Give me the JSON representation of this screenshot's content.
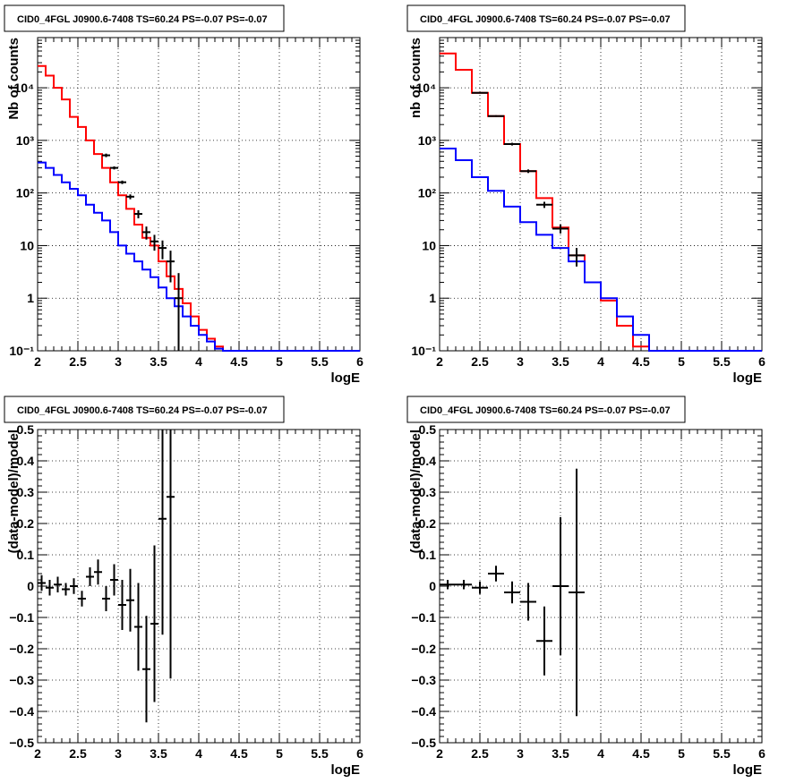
{
  "chart_data": [
    {
      "type": "line",
      "title": "CID0_4FGL J0900.6-7408 TS=60.24 PS=-0.07 PS=-0.07",
      "xlabel": "logE",
      "ylabel": "Nb of counts",
      "xlim": [
        2,
        6
      ],
      "ylim": [
        0.1,
        90000
      ],
      "yscale": "log",
      "grid": true,
      "xticks": [
        "2",
        "2.5",
        "3",
        "3.5",
        "4",
        "4.5",
        "5",
        "5.5",
        "6"
      ],
      "yticks": [
        {
          "v": 0.1,
          "label": "10⁻¹"
        },
        {
          "v": 1,
          "label": "1"
        },
        {
          "v": 10,
          "label": "10"
        },
        {
          "v": 100,
          "label": "10²"
        },
        {
          "v": 1000,
          "label": "10³"
        },
        {
          "v": 10000,
          "label": "10⁴"
        }
      ],
      "binwidth": 0.1,
      "series": [
        {
          "color": "#ff0000",
          "style": "step",
          "x": [
            2.0,
            2.1,
            2.2,
            2.3,
            2.4,
            2.5,
            2.6,
            2.7,
            2.8,
            2.9,
            3.0,
            3.1,
            3.2,
            3.3,
            3.4,
            3.5,
            3.6,
            3.7,
            3.8,
            3.9,
            4.0,
            4.1,
            4.2,
            4.3,
            4.4,
            4.5,
            4.6,
            4.7,
            4.8,
            4.9,
            5.0,
            5.1,
            5.2,
            5.3,
            5.4,
            5.5,
            5.6,
            5.7,
            5.8,
            5.9
          ],
          "values": [
            26000,
            17000,
            10000,
            6000,
            2800,
            1800,
            1000,
            550,
            300,
            160,
            90,
            50,
            25,
            14,
            10,
            5,
            2.6,
            1.5,
            0.8,
            0.45,
            0.25,
            0.17,
            0.12,
            0.1,
            0.1,
            0.1,
            0.1,
            0.1,
            0.1,
            0.1,
            0.1,
            0.1,
            0.1,
            0.1,
            0.1,
            0.1,
            0.1,
            0.1,
            0.1,
            0.1
          ]
        },
        {
          "color": "#0000ff",
          "style": "step",
          "x": [
            2.0,
            2.1,
            2.2,
            2.3,
            2.4,
            2.5,
            2.6,
            2.7,
            2.8,
            2.9,
            3.0,
            3.1,
            3.2,
            3.3,
            3.4,
            3.5,
            3.6,
            3.7,
            3.8,
            3.9,
            4.0,
            4.1,
            4.2,
            4.3,
            4.4,
            4.5,
            4.6,
            4.7,
            4.8,
            4.9,
            5.0,
            5.1,
            5.2,
            5.3,
            5.4,
            5.5,
            5.6,
            5.7,
            5.8,
            5.9
          ],
          "values": [
            380,
            300,
            220,
            160,
            120,
            90,
            60,
            42,
            30,
            18,
            10,
            7,
            5,
            3.5,
            2.5,
            1.6,
            1.0,
            0.7,
            0.45,
            0.3,
            0.2,
            0.15,
            0.11,
            0.1,
            0.1,
            0.1,
            0.1,
            0.1,
            0.1,
            0.1,
            0.1,
            0.1,
            0.1,
            0.1,
            0.1,
            0.1,
            0.1,
            0.1,
            0.1,
            0.1
          ]
        },
        {
          "color": "#000000",
          "style": "errorbar",
          "x": [
            2.85,
            2.95,
            3.05,
            3.15,
            3.25,
            3.35,
            3.45,
            3.55,
            3.65,
            3.75
          ],
          "values": [
            520,
            300,
            160,
            85,
            40,
            18,
            12,
            9,
            5,
            1.0
          ],
          "err_low": [
            480,
            280,
            148,
            76,
            33,
            13,
            8,
            5.5,
            2,
            0.1
          ],
          "err_high": [
            560,
            320,
            172,
            94,
            47,
            23,
            16,
            12.5,
            8,
            3
          ]
        }
      ]
    },
    {
      "type": "line",
      "title": "CID0_4FGL J0900.6-7408 TS=60.24 PS=-0.07 PS=-0.07",
      "xlabel": "logE",
      "ylabel": "nb of counts",
      "xlim": [
        2,
        6
      ],
      "ylim": [
        0.1,
        90000
      ],
      "yscale": "log",
      "grid": true,
      "xticks": [
        "2",
        "2.5",
        "3",
        "3.5",
        "4",
        "4.5",
        "5",
        "5.5",
        "6"
      ],
      "yticks": [
        {
          "v": 0.1,
          "label": "10⁻¹"
        },
        {
          "v": 1,
          "label": "1"
        },
        {
          "v": 10,
          "label": "10"
        },
        {
          "v": 100,
          "label": "10²"
        },
        {
          "v": 1000,
          "label": "10³"
        },
        {
          "v": 10000,
          "label": "10⁴"
        }
      ],
      "binwidth": 0.2,
      "series": [
        {
          "color": "#ff0000",
          "style": "step",
          "x": [
            2.0,
            2.2,
            2.4,
            2.6,
            2.8,
            3.0,
            3.2,
            3.4,
            3.6,
            3.8,
            4.0,
            4.2,
            4.4,
            4.6,
            4.8,
            5.0,
            5.2,
            5.4,
            5.6,
            5.8
          ],
          "values": [
            45000,
            22000,
            8000,
            2900,
            850,
            260,
            80,
            22,
            6.5,
            2.0,
            0.9,
            0.3,
            0.12,
            0.1,
            0.1,
            0.1,
            0.1,
            0.1,
            0.1,
            0.1
          ]
        },
        {
          "color": "#0000ff",
          "style": "step",
          "x": [
            2.0,
            2.2,
            2.4,
            2.6,
            2.8,
            3.0,
            3.2,
            3.4,
            3.6,
            3.8,
            4.0,
            4.2,
            4.4,
            4.6,
            4.8,
            5.0,
            5.2,
            5.4,
            5.6,
            5.8
          ],
          "values": [
            700,
            420,
            200,
            110,
            55,
            28,
            16,
            9,
            5,
            2.0,
            1.0,
            0.45,
            0.2,
            0.1,
            0.1,
            0.1,
            0.1,
            0.1,
            0.1,
            0.1
          ]
        },
        {
          "color": "#000000",
          "style": "errorbar",
          "x": [
            2.5,
            2.7,
            2.9,
            3.1,
            3.3,
            3.5,
            3.7
          ],
          "values": [
            8000,
            2900,
            850,
            260,
            60,
            21,
            6.5
          ],
          "err_low": [
            7800,
            2800,
            800,
            240,
            52,
            17,
            4
          ],
          "err_high": [
            8200,
            3000,
            900,
            280,
            68,
            25,
            9
          ]
        }
      ]
    },
    {
      "type": "scatter",
      "title": "CID0_4FGL J0900.6-7408 TS=60.24 PS=-0.07 PS=-0.07",
      "xlabel": "logE",
      "ylabel": "(data-model)/model",
      "xlim": [
        2,
        6
      ],
      "ylim": [
        -0.5,
        0.5
      ],
      "grid": true,
      "xticks": [
        "2",
        "2.5",
        "3",
        "3.5",
        "4",
        "4.5",
        "5",
        "5.5",
        "6"
      ],
      "yticks": [
        {
          "v": -0.5,
          "label": "−0.5"
        },
        {
          "v": -0.4,
          "label": "−0.4"
        },
        {
          "v": -0.3,
          "label": "−0.3"
        },
        {
          "v": -0.2,
          "label": "−0.2"
        },
        {
          "v": -0.1,
          "label": "−0.1"
        },
        {
          "v": 0,
          "label": "0"
        },
        {
          "v": 0.1,
          "label": "0.1"
        },
        {
          "v": 0.2,
          "label": "0.2"
        },
        {
          "v": 0.3,
          "label": "0.3"
        },
        {
          "v": 0.4,
          "label": "0.4"
        },
        {
          "v": 0.5,
          "label": "0.5"
        }
      ],
      "binwidth": 0.1,
      "series": [
        {
          "color": "#000000",
          "style": "errorbar",
          "x": [
            2.05,
            2.15,
            2.25,
            2.35,
            2.45,
            2.55,
            2.65,
            2.75,
            2.85,
            2.95,
            3.05,
            3.15,
            3.25,
            3.35,
            3.45,
            3.55,
            3.65
          ],
          "values": [
            0.01,
            -0.005,
            0.005,
            -0.01,
            0.0,
            -0.04,
            0.03,
            0.045,
            -0.04,
            0.02,
            -0.06,
            -0.045,
            -0.13,
            -0.265,
            -0.12,
            0.215,
            0.285
          ],
          "err": [
            0.025,
            0.025,
            0.025,
            0.02,
            0.025,
            0.025,
            0.03,
            0.04,
            0.04,
            0.05,
            0.08,
            0.1,
            0.14,
            0.17,
            0.25,
            0.37,
            0.58
          ]
        }
      ]
    },
    {
      "type": "scatter",
      "title": "CID0_4FGL J0900.6-7408 TS=60.24 PS=-0.07 PS=-0.07",
      "xlabel": "logE",
      "ylabel": "(data-model)/model",
      "xlim": [
        2,
        6
      ],
      "ylim": [
        -0.5,
        0.5
      ],
      "grid": true,
      "xticks": [
        "2",
        "2.5",
        "3",
        "3.5",
        "4",
        "4.5",
        "5",
        "5.5",
        "6"
      ],
      "yticks": [
        {
          "v": -0.5,
          "label": "−0.5"
        },
        {
          "v": -0.4,
          "label": "−0.4"
        },
        {
          "v": -0.3,
          "label": "−0.3"
        },
        {
          "v": -0.2,
          "label": "−0.2"
        },
        {
          "v": -0.1,
          "label": "−0.1"
        },
        {
          "v": 0,
          "label": "0"
        },
        {
          "v": 0.1,
          "label": "0.1"
        },
        {
          "v": 0.2,
          "label": "0.2"
        },
        {
          "v": 0.3,
          "label": "0.3"
        },
        {
          "v": 0.4,
          "label": "0.4"
        },
        {
          "v": 0.5,
          "label": "0.5"
        }
      ],
      "binwidth": 0.2,
      "series": [
        {
          "color": "#000000",
          "style": "errorbar",
          "x": [
            2.1,
            2.3,
            2.5,
            2.7,
            2.9,
            3.1,
            3.3,
            3.5,
            3.7
          ],
          "values": [
            0.005,
            0.005,
            -0.005,
            0.04,
            -0.02,
            -0.05,
            -0.175,
            0.0,
            -0.02
          ],
          "err": [
            0.015,
            0.015,
            0.02,
            0.025,
            0.035,
            0.06,
            0.11,
            0.22,
            0.395
          ]
        }
      ]
    }
  ]
}
